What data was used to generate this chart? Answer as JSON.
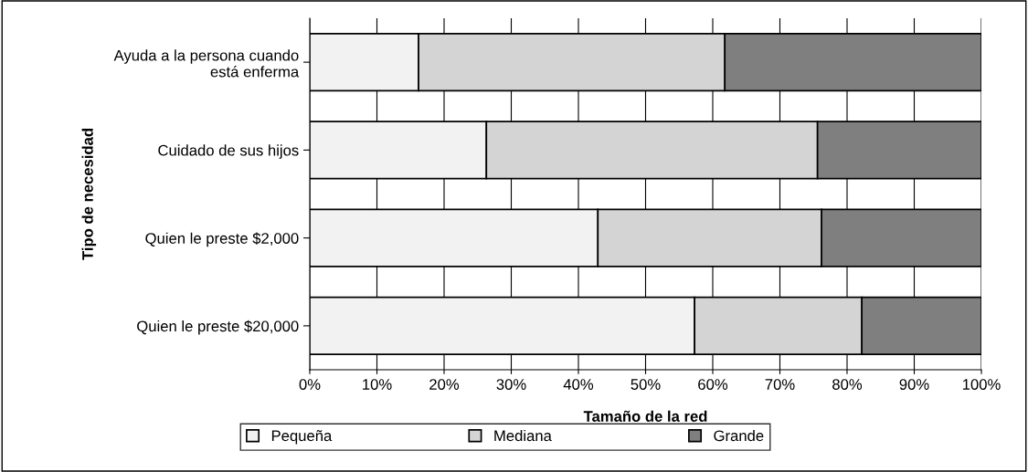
{
  "chart_data": {
    "type": "bar",
    "orientation": "horizontal",
    "stacked": true,
    "xlabel": "Tamaño de la red",
    "ylabel": "Tipo de necesidad",
    "categories": [
      "Ayuda a la persona cuando\nestá enferma",
      "Cuidado de sus hijos",
      "Quien le preste $2,000",
      "Quien le preste $20,000"
    ],
    "series": [
      {
        "name": "Pequeña",
        "color": "#f2f2f2",
        "values": [
          16.2,
          26.3,
          42.9,
          57.3
        ]
      },
      {
        "name": "Mediana",
        "color": "#d4d4d4",
        "values": [
          45.6,
          49.3,
          33.3,
          24.9
        ]
      },
      {
        "name": "Grande",
        "color": "#7f7f7f",
        "values": [
          38.2,
          24.4,
          23.8,
          17.8
        ]
      }
    ],
    "xlim": [
      0,
      100
    ],
    "xticks": [
      {
        "value": 0,
        "label": "0%"
      },
      {
        "value": 10,
        "label": "10%"
      },
      {
        "value": 20,
        "label": "20%"
      },
      {
        "value": 30,
        "label": "30%"
      },
      {
        "value": 40,
        "label": "40%"
      },
      {
        "value": 50,
        "label": "50%"
      },
      {
        "value": 60,
        "label": "60%"
      },
      {
        "value": 70,
        "label": "70%"
      },
      {
        "value": 80,
        "label": "80%"
      },
      {
        "value": 90,
        "label": "90%"
      },
      {
        "value": 100,
        "label": "100%"
      }
    ],
    "grid": "x",
    "legend": "bottom"
  }
}
